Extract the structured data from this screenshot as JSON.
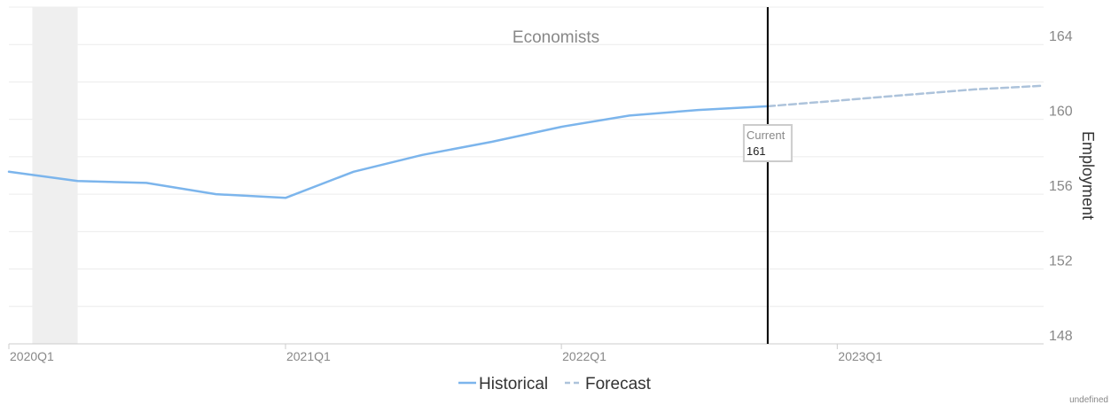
{
  "chart_data": {
    "type": "line",
    "title": "Economists",
    "ylabel": "Employment",
    "ylim": [
      148,
      166
    ],
    "yticks": [
      "148",
      "152",
      "156",
      "160",
      "164"
    ],
    "x_range": [
      "2020-01-01",
      "2023-10-01"
    ],
    "x_ticks": [
      {
        "label": "2020Q1",
        "date": "2020-01-01"
      },
      {
        "label": "2021Q1",
        "date": "2021-01-01"
      },
      {
        "label": "2022Q1",
        "date": "2022-01-01"
      },
      {
        "label": "2023Q1",
        "date": "2023-01-01"
      }
    ],
    "recession_band": [
      "2020-02-01",
      "2020-04-01"
    ],
    "current_marker": {
      "date": "2022-10-01",
      "label": "Current",
      "value": "161"
    },
    "series": [
      {
        "name": "Historical",
        "color": "#7cb5ec",
        "dash": false,
        "points": [
          {
            "x": "2020-01-01",
            "y": 157.2
          },
          {
            "x": "2020-04-01",
            "y": 156.7
          },
          {
            "x": "2020-07-01",
            "y": 156.6
          },
          {
            "x": "2020-10-01",
            "y": 156.0
          },
          {
            "x": "2021-01-01",
            "y": 155.8
          },
          {
            "x": "2021-04-01",
            "y": 157.2
          },
          {
            "x": "2021-07-01",
            "y": 158.1
          },
          {
            "x": "2021-10-01",
            "y": 158.8
          },
          {
            "x": "2022-01-01",
            "y": 159.6
          },
          {
            "x": "2022-04-01",
            "y": 160.2
          },
          {
            "x": "2022-07-01",
            "y": 160.5
          },
          {
            "x": "2022-10-01",
            "y": 160.7
          }
        ]
      },
      {
        "name": "Forecast",
        "color": "#adc3db",
        "dash": true,
        "points": [
          {
            "x": "2022-10-01",
            "y": 160.7
          },
          {
            "x": "2023-01-01",
            "y": 161.0
          },
          {
            "x": "2023-04-01",
            "y": 161.3
          },
          {
            "x": "2023-07-01",
            "y": 161.6
          },
          {
            "x": "2023-10-01",
            "y": 161.8
          }
        ]
      }
    ],
    "legend": {
      "placement": "bottom-center",
      "items": [
        "Historical",
        "Forecast"
      ]
    }
  },
  "footer": {
    "credit": "undefined"
  }
}
